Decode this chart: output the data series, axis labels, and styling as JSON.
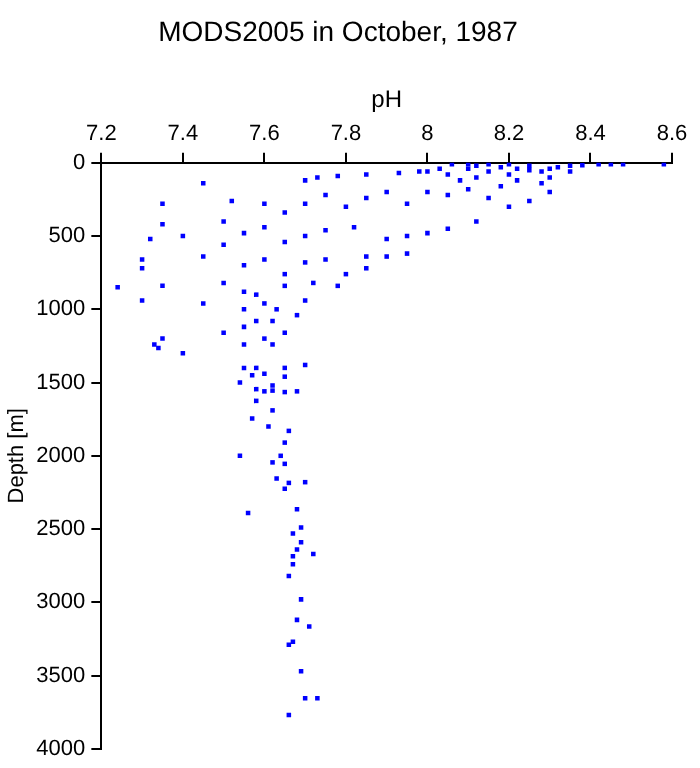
{
  "chart_data": {
    "type": "scatter",
    "title": "MODS2005 in October, 1987",
    "xlabel": "pH",
    "ylabel": "Depth [m]",
    "marker": "square",
    "xlim": [
      7.2,
      8.6
    ],
    "xticks": [
      7.2,
      7.4,
      7.6,
      7.8,
      8,
      8.2,
      8.4,
      8.6
    ],
    "ylim": [
      4000,
      0
    ],
    "yticks": [
      0,
      500,
      1000,
      1500,
      2000,
      2500,
      3000,
      3500,
      4000
    ],
    "series": [
      {
        "color": "#0000ff",
        "x": [
          8.58,
          8.48,
          8.45,
          8.42,
          8.38,
          8.35,
          8.32,
          8.3,
          8.28,
          8.25,
          8.22,
          8.2,
          8.18,
          8.15,
          8.12,
          8.1,
          8.08,
          8.05,
          8.03,
          8.0,
          7.98,
          7.93,
          7.85,
          7.78,
          7.73,
          7.7,
          8.3,
          8.25,
          8.2,
          8.15,
          8.1,
          8.05,
          8.0,
          7.95,
          7.9,
          7.85,
          7.8,
          7.75,
          7.7,
          7.65,
          7.6,
          7.52,
          7.5,
          7.45,
          7.35,
          8.12,
          8.05,
          8.0,
          7.95,
          7.9,
          7.82,
          7.75,
          7.7,
          7.65,
          7.6,
          7.55,
          7.5,
          7.4,
          7.32,
          7.35,
          7.95,
          7.9,
          7.85,
          7.75,
          7.7,
          7.65,
          7.6,
          7.55,
          7.45,
          7.3,
          7.3,
          7.85,
          7.8,
          7.78,
          7.72,
          7.65,
          7.58,
          7.55,
          7.5,
          7.35,
          7.24,
          7.7,
          7.6,
          7.45,
          7.3,
          7.63,
          7.55,
          7.55,
          7.58,
          7.62,
          7.68,
          7.5,
          7.35,
          7.33,
          7.6,
          7.65,
          7.55,
          7.62,
          7.4,
          7.55,
          7.58,
          7.6,
          7.65,
          7.7,
          7.34,
          7.6,
          7.62,
          7.68,
          8.2,
          8.15,
          8.1,
          8.25,
          8.3,
          8.35,
          8.22,
          8.18,
          8.28,
          8.12,
          8.06,
          7.57,
          7.65,
          7.54,
          7.58,
          7.62,
          7.65,
          7.58,
          7.57,
          7.62,
          7.61,
          7.66,
          7.65,
          7.54,
          7.64,
          7.62,
          7.65,
          7.63,
          7.66,
          7.7,
          7.65,
          7.56,
          7.68,
          7.69,
          7.67,
          7.69,
          7.68,
          7.72,
          7.67,
          7.67,
          7.66,
          7.69,
          7.68,
          7.71,
          7.66,
          7.67,
          7.69,
          7.7,
          7.73,
          7.66
        ],
        "values": [
          10,
          10,
          10,
          10,
          16,
          20,
          30,
          40,
          60,
          20,
          40,
          80,
          30,
          60,
          100,
          40,
          120,
          80,
          40,
          60,
          60,
          70,
          80,
          90,
          100,
          120,
          200,
          260,
          300,
          240,
          180,
          220,
          200,
          280,
          200,
          240,
          300,
          220,
          280,
          340,
          280,
          260,
          400,
          140,
          280,
          400,
          450,
          480,
          500,
          520,
          440,
          460,
          500,
          540,
          440,
          480,
          560,
          500,
          520,
          420,
          620,
          640,
          640,
          660,
          680,
          760,
          660,
          700,
          640,
          660,
          720,
          720,
          760,
          840,
          820,
          840,
          900,
          880,
          820,
          840,
          850,
          940,
          960,
          960,
          940,
          1000,
          1000,
          1120,
          1080,
          1080,
          1040,
          1160,
          1200,
          1240,
          1200,
          1160,
          1240,
          1240,
          1300,
          1400,
          1400,
          1440,
          1400,
          1380,
          1264,
          1560,
          1520,
          1560,
          10,
          10,
          10,
          50,
          100,
          60,
          120,
          160,
          140,
          20,
          10,
          1450,
          1460,
          1500,
          1545,
          1555,
          1565,
          1625,
          1745,
          1690,
          1800,
          1830,
          1910,
          2000,
          2000,
          2045,
          2055,
          2155,
          2185,
          2180,
          2225,
          2390,
          2365,
          2490,
          2530,
          2590,
          2640,
          2670,
          2685,
          2740,
          2820,
          2980,
          3120,
          3165,
          3290,
          3270,
          3470,
          3655,
          3655,
          3770
        ]
      }
    ]
  }
}
